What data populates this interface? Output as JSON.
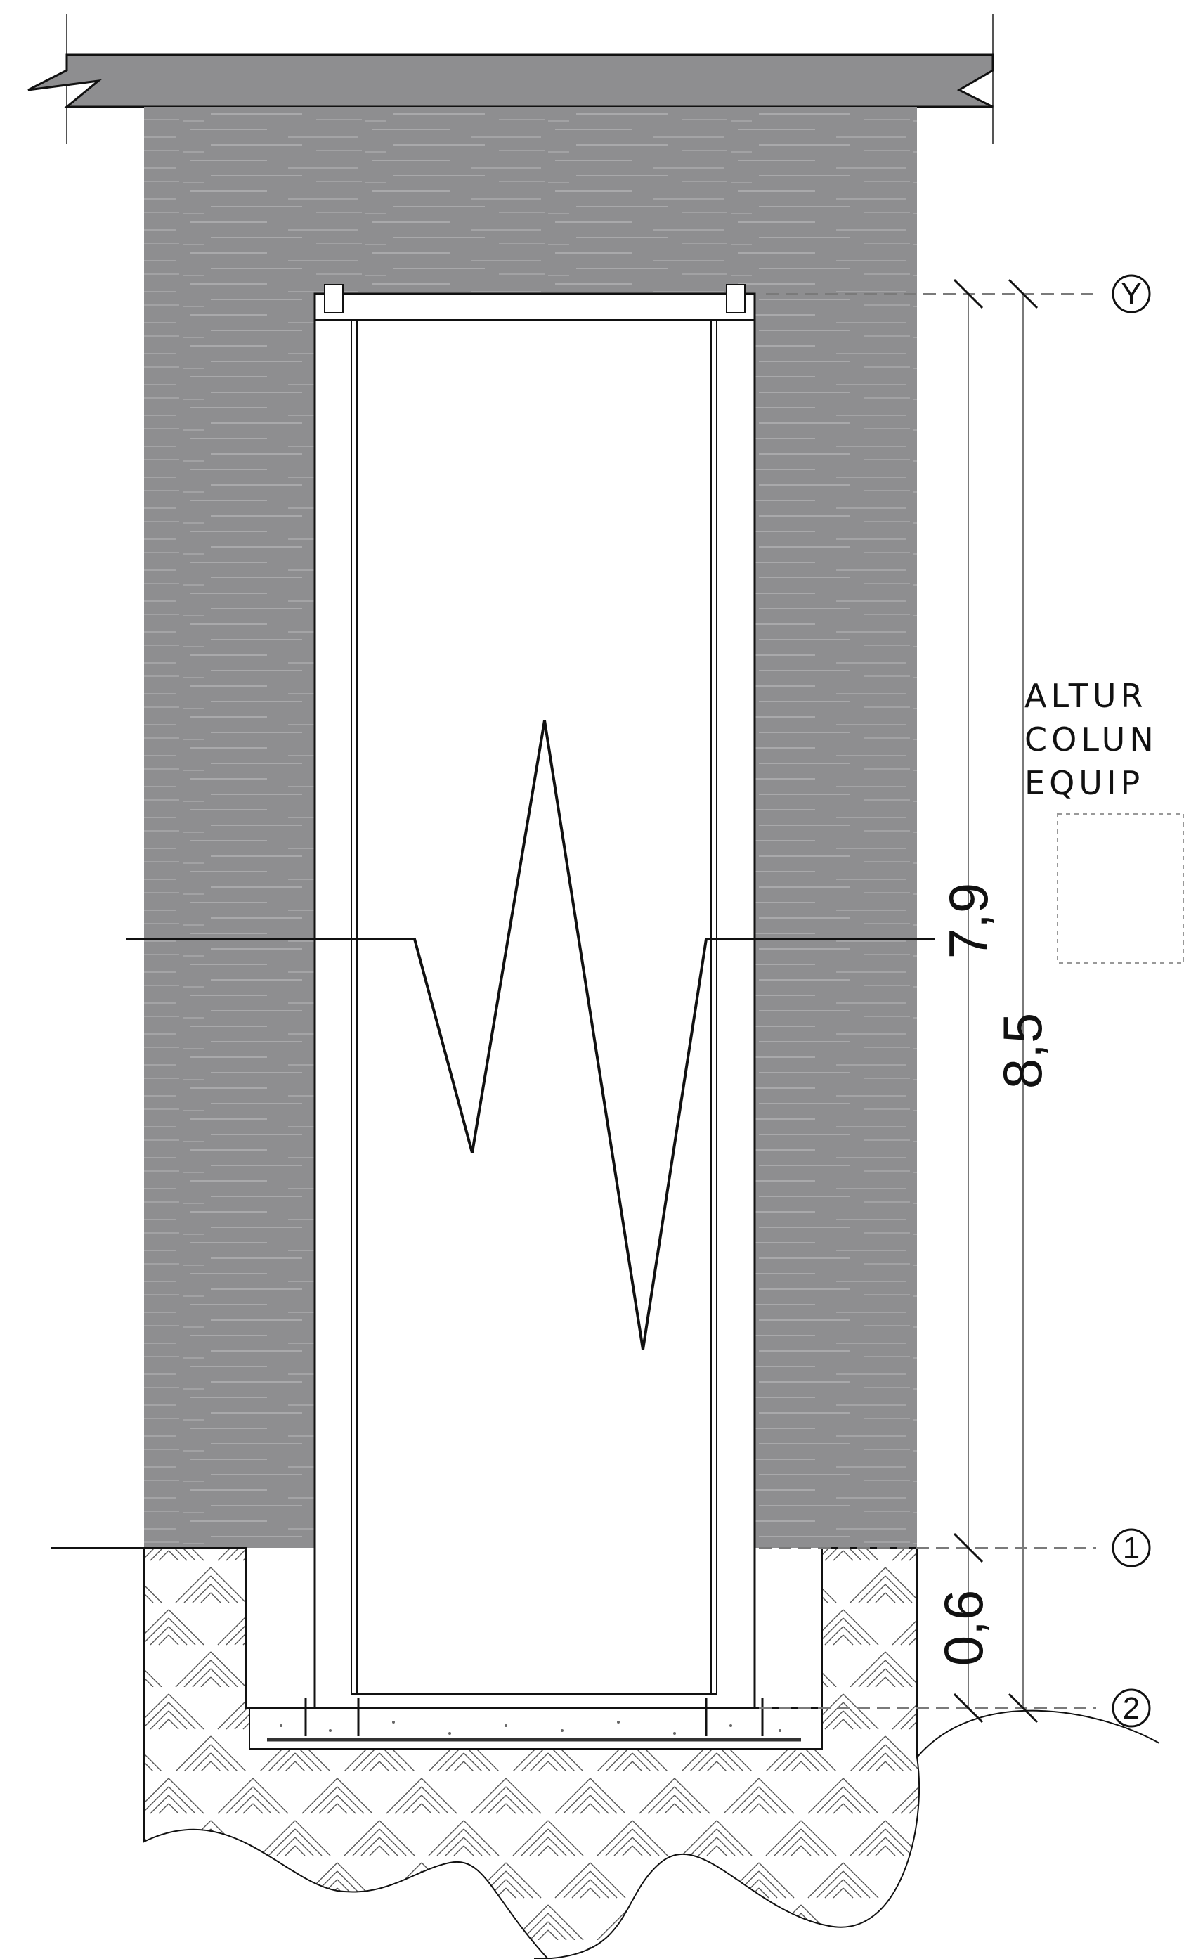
{
  "dimensions": {
    "inner_height": "7,9",
    "total_height": "8,5",
    "embed_depth": "0,6"
  },
  "level_markers": {
    "top": "Y",
    "ground": "1",
    "base": "2"
  },
  "note": {
    "line1": "ALTUR",
    "line2": "COLUN",
    "line3": "EQUIP"
  },
  "colors": {
    "wall": "#8e8e90",
    "line": "#111111",
    "dim_line": "#7a7a7a",
    "paper": "#ffffff"
  }
}
